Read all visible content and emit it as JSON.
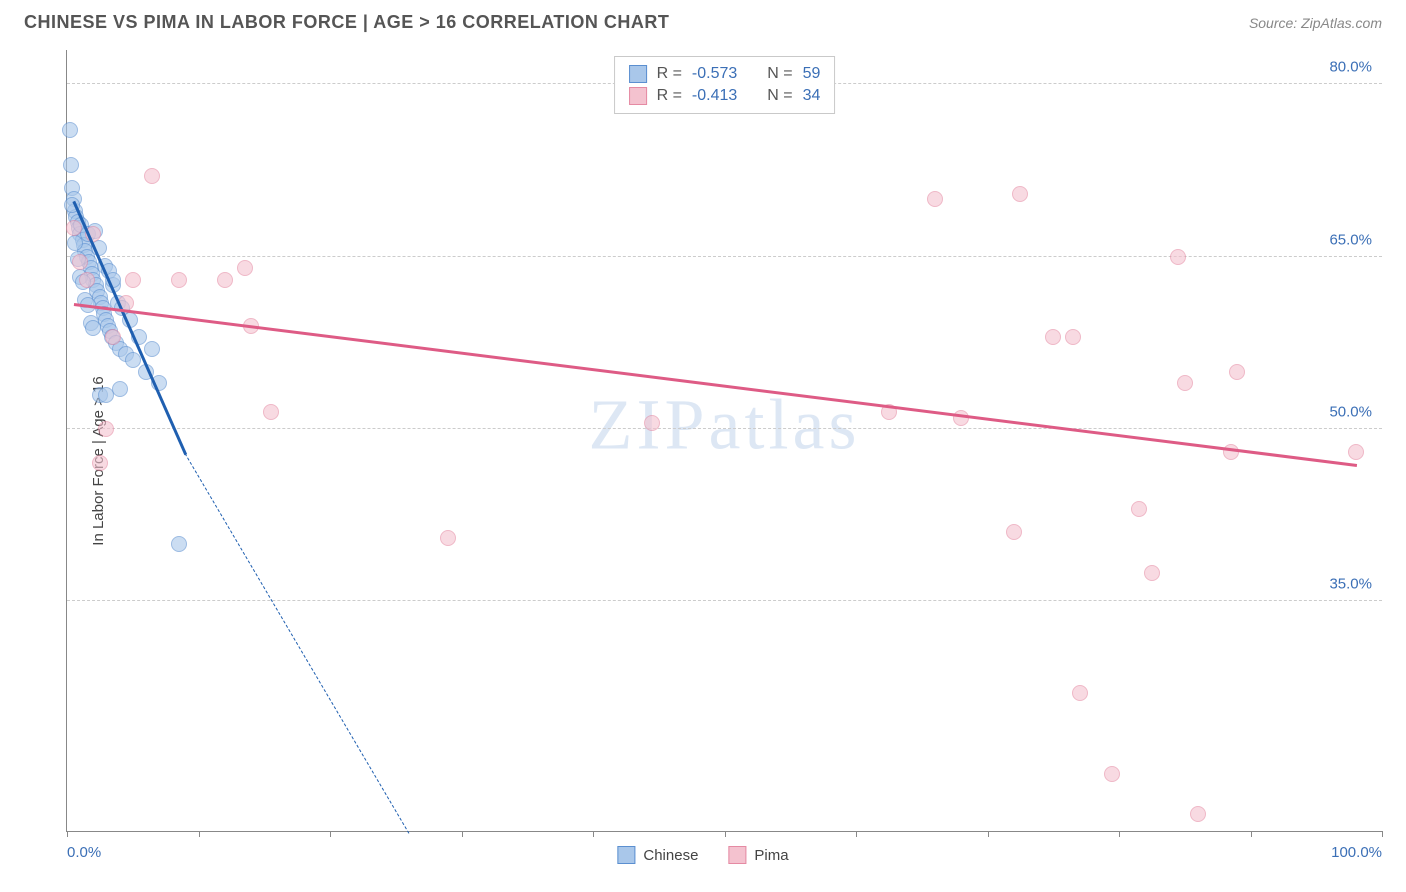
{
  "header": {
    "title": "CHINESE VS PIMA IN LABOR FORCE | AGE > 16 CORRELATION CHART",
    "source": "Source: ZipAtlas.com"
  },
  "chart": {
    "type": "scatter",
    "ylabel": "In Labor Force | Age > 16",
    "watermark": "ZIPatlas",
    "xlim": [
      0,
      100
    ],
    "ylim": [
      15,
      83
    ],
    "yticks": [
      {
        "value": 80.0,
        "label": "80.0%"
      },
      {
        "value": 65.0,
        "label": "65.0%"
      },
      {
        "value": 50.0,
        "label": "50.0%"
      },
      {
        "value": 35.0,
        "label": "35.0%"
      }
    ],
    "xticks": [
      0,
      10,
      20,
      30,
      40,
      50,
      60,
      70,
      80,
      90,
      100
    ],
    "xtick_labels": [
      {
        "value": 0,
        "label": "0.0%"
      },
      {
        "value": 100,
        "label": "100.0%"
      }
    ],
    "grid_color": "#cccccc",
    "background_color": "#ffffff",
    "axis_color": "#888888",
    "tick_label_color": "#3b6fb6",
    "series": [
      {
        "name": "Chinese",
        "fill": "#a9c7ea",
        "stroke": "#5b8fd0",
        "line_color": "#1f5fb0",
        "R": "-0.573",
        "N": "59",
        "trend": {
          "x1": 0.5,
          "y1": 70,
          "x2": 9,
          "y2": 48,
          "dash_to_x": 26,
          "dash_to_y": 15
        },
        "points": [
          [
            0.2,
            76
          ],
          [
            0.3,
            73
          ],
          [
            0.4,
            71
          ],
          [
            0.5,
            70
          ],
          [
            0.6,
            69
          ],
          [
            0.7,
            68.5
          ],
          [
            0.8,
            68
          ],
          [
            0.9,
            67.5
          ],
          [
            1.0,
            67
          ],
          [
            1.1,
            67.8
          ],
          [
            1.2,
            66.5
          ],
          [
            1.3,
            66
          ],
          [
            1.4,
            65.5
          ],
          [
            1.5,
            65
          ],
          [
            1.6,
            67
          ],
          [
            1.7,
            64.5
          ],
          [
            1.8,
            64
          ],
          [
            1.9,
            63.5
          ],
          [
            2.0,
            63
          ],
          [
            2.1,
            67.2
          ],
          [
            2.2,
            62.5
          ],
          [
            2.3,
            62
          ],
          [
            2.4,
            65.8
          ],
          [
            2.5,
            61.5
          ],
          [
            2.6,
            61
          ],
          [
            2.7,
            60.5
          ],
          [
            2.8,
            60
          ],
          [
            2.9,
            64.2
          ],
          [
            3.0,
            59.5
          ],
          [
            3.1,
            59
          ],
          [
            3.2,
            63.8
          ],
          [
            3.3,
            58.5
          ],
          [
            3.4,
            58
          ],
          [
            3.5,
            62.5
          ],
          [
            3.7,
            57.5
          ],
          [
            3.9,
            61
          ],
          [
            4.0,
            57
          ],
          [
            4.2,
            60.5
          ],
          [
            4.5,
            56.5
          ],
          [
            4.8,
            59.5
          ],
          [
            5.0,
            56
          ],
          [
            5.5,
            58
          ],
          [
            6.0,
            55
          ],
          [
            6.5,
            57
          ],
          [
            7.0,
            54
          ],
          [
            0.4,
            69.5
          ],
          [
            0.6,
            66.2
          ],
          [
            0.8,
            64.8
          ],
          [
            1.0,
            63.2
          ],
          [
            1.2,
            62.8
          ],
          [
            1.4,
            61.2
          ],
          [
            1.6,
            60.8
          ],
          [
            1.8,
            59.2
          ],
          [
            2.0,
            58.8
          ],
          [
            2.5,
            53
          ],
          [
            3.0,
            53
          ],
          [
            4.0,
            53.5
          ],
          [
            8.5,
            40
          ],
          [
            3.5,
            63
          ]
        ]
      },
      {
        "name": "Pima",
        "fill": "#f4c2cf",
        "stroke": "#e58aa3",
        "line_color": "#de5b85",
        "R": "-0.413",
        "N": "34",
        "trend": {
          "x1": 0.5,
          "y1": 61,
          "x2": 98,
          "y2": 47
        },
        "points": [
          [
            0.5,
            67.5
          ],
          [
            1.0,
            64.5
          ],
          [
            1.5,
            63
          ],
          [
            2.0,
            67
          ],
          [
            2.5,
            47
          ],
          [
            3.0,
            50
          ],
          [
            3.5,
            58
          ],
          [
            4.5,
            61
          ],
          [
            5.0,
            63
          ],
          [
            6.5,
            72
          ],
          [
            8.5,
            63
          ],
          [
            12.0,
            63
          ],
          [
            13.5,
            64
          ],
          [
            14.0,
            59
          ],
          [
            15.5,
            51.5
          ],
          [
            29.0,
            40.5
          ],
          [
            44.5,
            50.5
          ],
          [
            62.5,
            51.5
          ],
          [
            66.0,
            70
          ],
          [
            68.0,
            51
          ],
          [
            72.5,
            70.5
          ],
          [
            72.0,
            41
          ],
          [
            75.0,
            58
          ],
          [
            76.5,
            58
          ],
          [
            77.0,
            27
          ],
          [
            79.5,
            20
          ],
          [
            81.5,
            43
          ],
          [
            82.5,
            37.5
          ],
          [
            84.5,
            65
          ],
          [
            85.0,
            54
          ],
          [
            86.0,
            16.5
          ],
          [
            88.5,
            48
          ],
          [
            89.0,
            55
          ],
          [
            98.0,
            48
          ]
        ]
      }
    ],
    "legend_top": {
      "R_label": "R =",
      "N_label": "N ="
    },
    "legend_bottom": [
      {
        "label": "Chinese",
        "fill": "#a9c7ea",
        "stroke": "#5b8fd0"
      },
      {
        "label": "Pima",
        "fill": "#f4c2cf",
        "stroke": "#e58aa3"
      }
    ]
  }
}
